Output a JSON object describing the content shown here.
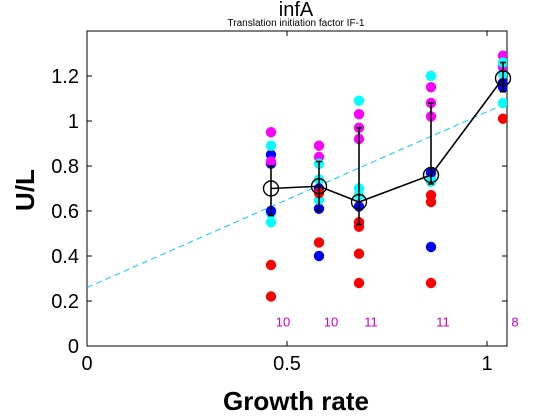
{
  "chart_data": {
    "type": "scatter",
    "title": "infA",
    "subtitle": "Translation initiation factor IF-1",
    "xlabel": "Growth rate",
    "ylabel": "U/L",
    "xlim": [
      0,
      1.05
    ],
    "ylim": [
      0,
      1.4
    ],
    "xticks": [
      0,
      0.5,
      1
    ],
    "xtick_labels": [
      "0",
      "0.5",
      "1"
    ],
    "yticks": [
      0,
      0.2,
      0.4,
      0.6,
      0.8,
      1,
      1.2
    ],
    "ytick_labels": [
      "0",
      "0.2",
      "0.4",
      "0.6",
      "0.8",
      "1",
      "1.2"
    ],
    "grid": false,
    "colors": {
      "red": "#ff0000",
      "blue": "#0000ff",
      "cyan": "#00ffff",
      "magenta": "#ff00ff",
      "mean_line": "#000000",
      "fit_line": "#00ccff",
      "count_text": "#cc00cc"
    },
    "points": [
      {
        "x": 0.46,
        "y": 0.22,
        "color": "red"
      },
      {
        "x": 0.46,
        "y": 0.36,
        "color": "red"
      },
      {
        "x": 0.46,
        "y": 0.55,
        "color": "cyan"
      },
      {
        "x": 0.46,
        "y": 0.59,
        "color": "cyan"
      },
      {
        "x": 0.46,
        "y": 0.81,
        "color": "blue"
      },
      {
        "x": 0.46,
        "y": 0.85,
        "color": "blue"
      },
      {
        "x": 0.46,
        "y": 0.89,
        "color": "cyan"
      },
      {
        "x": 0.46,
        "y": 0.95,
        "color": "magenta"
      },
      {
        "x": 0.46,
        "y": 0.82,
        "color": "magenta"
      },
      {
        "x": 0.46,
        "y": 0.6,
        "color": "blue"
      },
      {
        "x": 0.58,
        "y": 0.4,
        "color": "blue"
      },
      {
        "x": 0.58,
        "y": 0.46,
        "color": "red"
      },
      {
        "x": 0.58,
        "y": 0.61,
        "color": "blue"
      },
      {
        "x": 0.58,
        "y": 0.65,
        "color": "cyan"
      },
      {
        "x": 0.58,
        "y": 0.74,
        "color": "cyan"
      },
      {
        "x": 0.58,
        "y": 0.84,
        "color": "magenta"
      },
      {
        "x": 0.58,
        "y": 0.89,
        "color": "magenta"
      },
      {
        "x": 0.58,
        "y": 0.7,
        "color": "blue"
      },
      {
        "x": 0.58,
        "y": 0.68,
        "color": "red"
      },
      {
        "x": 0.58,
        "y": 0.81,
        "color": "cyan"
      },
      {
        "x": 0.68,
        "y": 0.28,
        "color": "red"
      },
      {
        "x": 0.68,
        "y": 0.41,
        "color": "red"
      },
      {
        "x": 0.68,
        "y": 0.53,
        "color": "red"
      },
      {
        "x": 0.68,
        "y": 0.55,
        "color": "red"
      },
      {
        "x": 0.68,
        "y": 0.62,
        "color": "blue"
      },
      {
        "x": 0.68,
        "y": 0.67,
        "color": "cyan"
      },
      {
        "x": 0.68,
        "y": 0.7,
        "color": "cyan"
      },
      {
        "x": 0.68,
        "y": 0.92,
        "color": "magenta"
      },
      {
        "x": 0.68,
        "y": 0.97,
        "color": "magenta"
      },
      {
        "x": 0.68,
        "y": 1.03,
        "color": "magenta"
      },
      {
        "x": 0.68,
        "y": 1.09,
        "color": "cyan"
      },
      {
        "x": 0.86,
        "y": 0.28,
        "color": "red"
      },
      {
        "x": 0.86,
        "y": 0.44,
        "color": "blue"
      },
      {
        "x": 0.86,
        "y": 0.64,
        "color": "red"
      },
      {
        "x": 0.86,
        "y": 0.67,
        "color": "red"
      },
      {
        "x": 0.86,
        "y": 0.75,
        "color": "cyan"
      },
      {
        "x": 0.86,
        "y": 0.77,
        "color": "blue"
      },
      {
        "x": 0.86,
        "y": 1.02,
        "color": "magenta"
      },
      {
        "x": 0.86,
        "y": 1.08,
        "color": "magenta"
      },
      {
        "x": 0.86,
        "y": 1.15,
        "color": "magenta"
      },
      {
        "x": 0.86,
        "y": 1.2,
        "color": "cyan"
      },
      {
        "x": 0.86,
        "y": 0.73,
        "color": "cyan"
      },
      {
        "x": 1.04,
        "y": 1.01,
        "color": "red"
      },
      {
        "x": 1.04,
        "y": 1.08,
        "color": "cyan"
      },
      {
        "x": 1.04,
        "y": 1.15,
        "color": "blue"
      },
      {
        "x": 1.04,
        "y": 1.17,
        "color": "blue"
      },
      {
        "x": 1.04,
        "y": 1.21,
        "color": "cyan"
      },
      {
        "x": 1.04,
        "y": 1.24,
        "color": "magenta"
      },
      {
        "x": 1.04,
        "y": 1.29,
        "color": "magenta"
      },
      {
        "x": 1.04,
        "y": 1.26,
        "color": "cyan"
      }
    ],
    "means": {
      "x": [
        0.46,
        0.58,
        0.68,
        0.86,
        1.04
      ],
      "y": [
        0.7,
        0.71,
        0.64,
        0.76,
        1.19
      ],
      "err_low": [
        0.58,
        0.6,
        0.54,
        0.72,
        1.13
      ],
      "err_high": [
        0.8,
        0.82,
        0.97,
        1.08,
        1.26
      ]
    },
    "fit_line": {
      "x": [
        0,
        1.05
      ],
      "y": [
        0.26,
        1.08
      ]
    },
    "counts": [
      {
        "x": 0.46,
        "label": "10"
      },
      {
        "x": 0.58,
        "label": "10"
      },
      {
        "x": 0.68,
        "label": "11"
      },
      {
        "x": 0.86,
        "label": "11"
      },
      {
        "x": 1.04,
        "label": "8"
      }
    ],
    "count_y": 0.11
  }
}
